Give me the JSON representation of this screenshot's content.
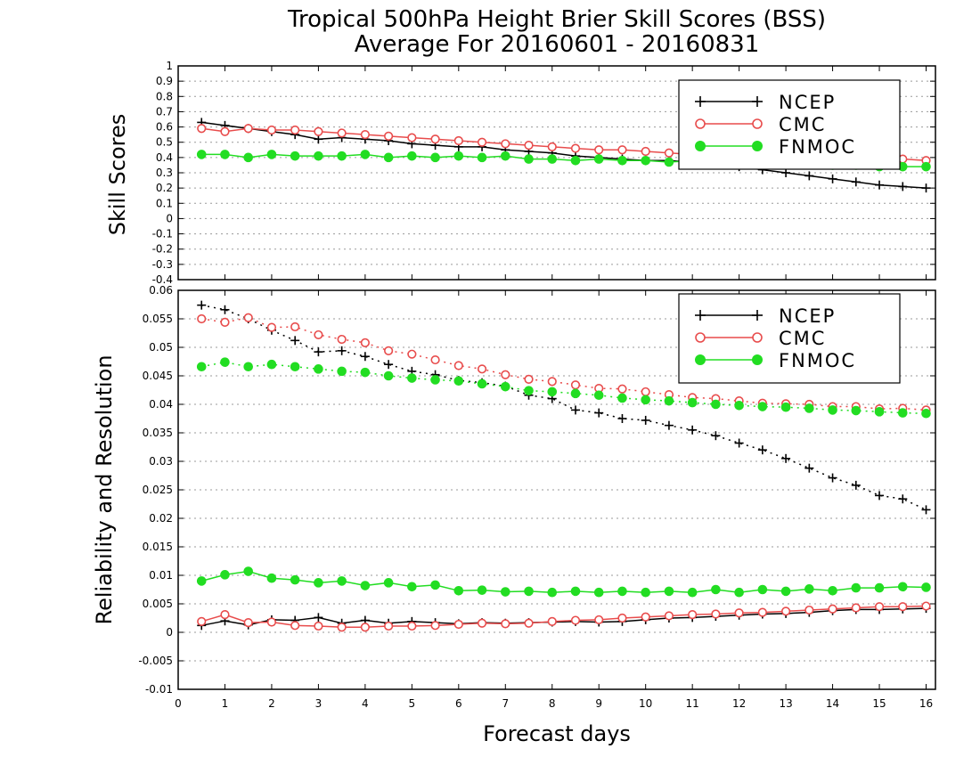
{
  "chart_data": [
    {
      "type": "line",
      "title": "Tropical 500hPa Height Brier Skill Scores (BSS)",
      "subtitle": "Average For 20160601 - 20160831",
      "xlabel": "",
      "ylabel": "Skill Scores",
      "ylim": [
        -0.4,
        1
      ],
      "xlim": [
        0,
        16.2
      ],
      "yticks": [
        "-0.4",
        "-0.3",
        "-0.2",
        "-0.1",
        "0",
        "0.1",
        "0.2",
        "0.3",
        "0.4",
        "0.5",
        "0.6",
        "0.7",
        "0.8",
        "0.9",
        "1"
      ],
      "grid": true,
      "legend_position": "top-right",
      "x": [
        0.5,
        1,
        1.5,
        2,
        2.5,
        3,
        3.5,
        4,
        4.5,
        5,
        5.5,
        6,
        6.5,
        7,
        7.5,
        8,
        8.5,
        9,
        9.5,
        10,
        10.5,
        11,
        11.5,
        12,
        12.5,
        13,
        13.5,
        14,
        14.5,
        15,
        15.5,
        16
      ],
      "series": [
        {
          "name": "NCEP",
          "color": "#000000",
          "marker": "plus",
          "values": [
            0.63,
            0.61,
            0.59,
            0.57,
            0.55,
            0.52,
            0.53,
            0.52,
            0.51,
            0.49,
            0.48,
            0.47,
            0.47,
            0.45,
            0.44,
            0.43,
            0.41,
            0.4,
            0.39,
            0.38,
            0.38,
            0.37,
            0.36,
            0.34,
            0.32,
            0.3,
            0.28,
            0.26,
            0.24,
            0.22,
            0.21,
            0.2
          ]
        },
        {
          "name": "CMC",
          "color": "#e84c4c",
          "marker": "open-circle",
          "values": [
            0.59,
            0.57,
            0.59,
            0.58,
            0.58,
            0.57,
            0.56,
            0.55,
            0.54,
            0.53,
            0.52,
            0.51,
            0.5,
            0.49,
            0.48,
            0.47,
            0.46,
            0.45,
            0.45,
            0.44,
            0.43,
            0.42,
            0.42,
            0.41,
            0.41,
            0.41,
            0.4,
            0.4,
            0.4,
            0.39,
            0.39,
            0.38
          ]
        },
        {
          "name": "FNMOC",
          "color": "#22dd22",
          "marker": "filled-circle",
          "values": [
            0.42,
            0.42,
            0.4,
            0.42,
            0.41,
            0.41,
            0.41,
            0.42,
            0.4,
            0.41,
            0.4,
            0.41,
            0.4,
            0.41,
            0.39,
            0.39,
            0.38,
            0.39,
            0.38,
            0.38,
            0.37,
            0.38,
            0.37,
            0.37,
            0.36,
            0.36,
            0.36,
            0.35,
            0.35,
            0.34,
            0.34,
            0.34
          ]
        }
      ]
    },
    {
      "type": "line",
      "xlabel": "Forecast days",
      "ylabel": "Reliability and Resolution",
      "ylim": [
        -0.01,
        0.06
      ],
      "xlim": [
        0,
        16.2
      ],
      "yticks": [
        "-0.01",
        "-0.005",
        "0",
        "0.005",
        "0.01",
        "0.015",
        "0.02",
        "0.025",
        "0.03",
        "0.035",
        "0.04",
        "0.045",
        "0.05",
        "0.055",
        "0.06"
      ],
      "xticks": [
        "0",
        "1",
        "2",
        "3",
        "4",
        "5",
        "6",
        "7",
        "8",
        "9",
        "10",
        "11",
        "12",
        "13",
        "14",
        "15",
        "16"
      ],
      "grid": true,
      "legend_position": "top-right",
      "x": [
        0.5,
        1,
        1.5,
        2,
        2.5,
        3,
        3.5,
        4,
        4.5,
        5,
        5.5,
        6,
        6.5,
        7,
        7.5,
        8,
        8.5,
        9,
        9.5,
        10,
        10.5,
        11,
        11.5,
        12,
        12.5,
        13,
        13.5,
        14,
        14.5,
        15,
        15.5,
        16
      ],
      "series": [
        {
          "name": "NCEP",
          "color": "#000000",
          "marker": "plus",
          "line": "dotted",
          "values": [
            0.0574,
            0.0566,
            0.055,
            0.053,
            0.0512,
            0.0492,
            0.0494,
            0.0484,
            0.047,
            0.0458,
            0.0452,
            0.0442,
            0.0438,
            0.0432,
            0.0416,
            0.041,
            0.039,
            0.0385,
            0.0375,
            0.0372,
            0.0363,
            0.0355,
            0.0345,
            0.0332,
            0.032,
            0.0305,
            0.0288,
            0.0271,
            0.0258,
            0.024,
            0.0234,
            0.0215
          ]
        },
        {
          "name": "CMC",
          "color": "#e84c4c",
          "marker": "open-circle",
          "line": "dotted",
          "values": [
            0.055,
            0.0544,
            0.0552,
            0.0535,
            0.0536,
            0.0522,
            0.0514,
            0.0508,
            0.0494,
            0.0488,
            0.0478,
            0.0468,
            0.0462,
            0.0452,
            0.0444,
            0.044,
            0.0434,
            0.0428,
            0.0427,
            0.0422,
            0.0417,
            0.0412,
            0.041,
            0.0406,
            0.0402,
            0.0401,
            0.04,
            0.0396,
            0.0396,
            0.0392,
            0.0393,
            0.039
          ]
        },
        {
          "name": "FNMOC",
          "color": "#22dd22",
          "marker": "filled-circle",
          "line": "dotted",
          "values": [
            0.0466,
            0.0474,
            0.0466,
            0.047,
            0.0466,
            0.0462,
            0.0458,
            0.0456,
            0.045,
            0.0446,
            0.0443,
            0.0441,
            0.0436,
            0.0431,
            0.0424,
            0.0422,
            0.0419,
            0.0416,
            0.0411,
            0.0408,
            0.0406,
            0.0403,
            0.04,
            0.0398,
            0.0396,
            0.0395,
            0.0393,
            0.039,
            0.0389,
            0.0387,
            0.0385,
            0.0384
          ]
        },
        {
          "name": "NCEP reliability",
          "legend": false,
          "color": "#000000",
          "marker": "plus",
          "values": [
            0.0012,
            0.002,
            0.0013,
            0.0022,
            0.0021,
            0.0026,
            0.0016,
            0.0021,
            0.0016,
            0.0019,
            0.0017,
            0.0015,
            0.0017,
            0.0016,
            0.0017,
            0.0018,
            0.0019,
            0.0018,
            0.0019,
            0.0022,
            0.0025,
            0.0026,
            0.0028,
            0.003,
            0.0032,
            0.0033,
            0.0035,
            0.0038,
            0.004,
            0.004,
            0.0041,
            0.0042
          ]
        },
        {
          "name": "CMC reliability",
          "legend": false,
          "color": "#e84c4c",
          "marker": "open-circle",
          "values": [
            0.0019,
            0.0031,
            0.0017,
            0.0018,
            0.0012,
            0.0011,
            0.0009,
            0.0009,
            0.0011,
            0.0011,
            0.0012,
            0.0014,
            0.0016,
            0.0015,
            0.0016,
            0.0019,
            0.0021,
            0.0022,
            0.0025,
            0.0027,
            0.0029,
            0.0031,
            0.0032,
            0.0034,
            0.0035,
            0.0037,
            0.0039,
            0.0041,
            0.0043,
            0.0045,
            0.0045,
            0.0046
          ]
        },
        {
          "name": "FNMOC resolution",
          "legend": false,
          "color": "#22dd22",
          "marker": "filled-circle",
          "values": [
            0.009,
            0.0101,
            0.0107,
            0.0095,
            0.0092,
            0.0087,
            0.009,
            0.0082,
            0.0087,
            0.008,
            0.0083,
            0.0073,
            0.0074,
            0.0071,
            0.0072,
            0.007,
            0.0072,
            0.007,
            0.0072,
            0.007,
            0.0072,
            0.007,
            0.0075,
            0.007,
            0.0075,
            0.0072,
            0.0076,
            0.0073,
            0.0078,
            0.0078,
            0.008,
            0.0079
          ]
        }
      ]
    }
  ]
}
